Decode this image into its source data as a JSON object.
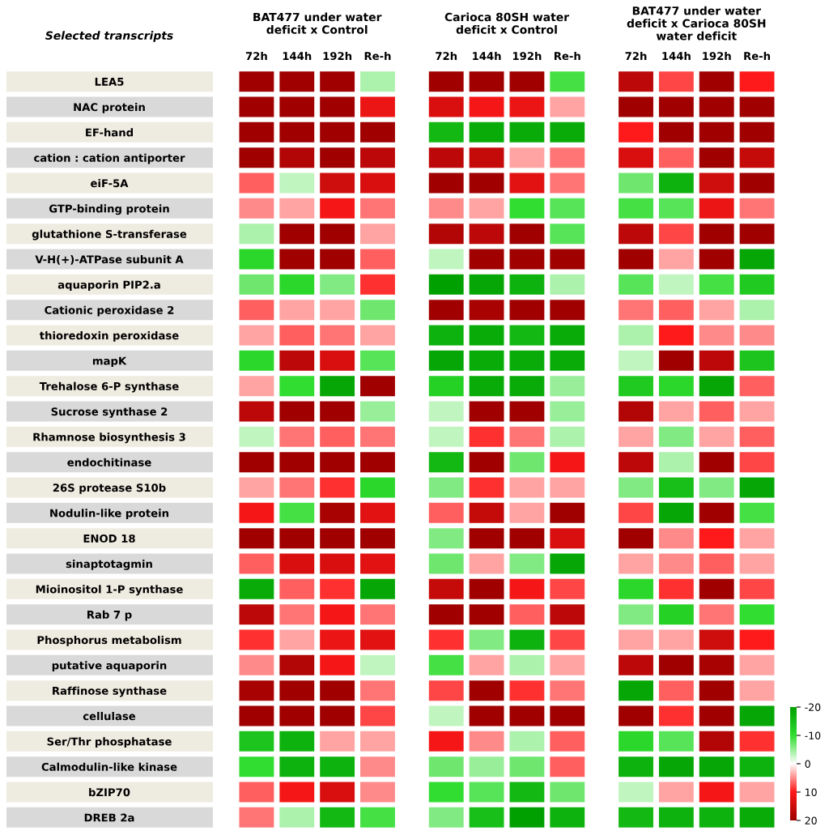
{
  "chart_data": {
    "type": "heatmap",
    "annotations": [
      "Selected transcripts",
      "BAT477 under water\ndeficit x Control",
      "Carioca 80SH water\ndeficit x Control",
      "BAT477 under water\ndeficit x Carioca 80SH\nwater deficit"
    ],
    "categories": [
      "72h",
      "144h",
      "192h",
      "Re-h",
      "72h",
      "144h",
      "192h",
      "Re-h",
      "72h",
      "144h",
      "192h",
      "Re-h"
    ],
    "y_categories": [
      "LEA5",
      "NAC protein",
      "EF-hand",
      "cation : cation antiporter",
      "eiF-5A",
      "GTP-binding protein",
      "glutathione S-transferase",
      "V-H(+)-ATPase subunit A",
      "aquaporin PIP2.a",
      "Cationic peroxidase 2",
      "thioredoxin peroxidase",
      "mapK",
      "Trehalose 6-P synthase",
      "Sucrose synthase 2",
      "Rhamnose biosynthesis 3",
      "endochitinase",
      "26S protease S10b",
      "Nodulin-like protein",
      "ENOD 18",
      "sinaptotagmin",
      "Mioinositol 1-P synthase",
      "Rab 7 p",
      "Phosphorus metabolism",
      "putative aquaporin",
      "Raffinose synthase",
      "cellulase",
      "Ser/Thr phosphatase",
      "Calmodulin-like kinase",
      "bZIP70",
      "DREB 2a"
    ],
    "cells": [
      [
        20,
        20,
        20,
        -4,
        20,
        20,
        20,
        -9,
        17,
        8,
        20,
        10
      ],
      [
        20,
        20,
        20,
        12,
        14,
        11,
        12,
        4,
        20,
        20,
        20,
        20
      ],
      [
        20,
        20,
        20,
        20,
        -16,
        -18,
        -18,
        -18,
        10,
        20,
        20,
        20
      ],
      [
        20,
        18,
        20,
        17,
        17,
        16,
        4,
        6,
        14,
        7,
        20,
        16
      ],
      [
        7,
        -3,
        15,
        14,
        20,
        20,
        13,
        6,
        -7,
        -17,
        15,
        20
      ],
      [
        5,
        4,
        11,
        6,
        5,
        4,
        -10,
        -8,
        -9,
        -8,
        12,
        6
      ],
      [
        -4,
        20,
        20,
        4,
        18,
        17,
        20,
        -8,
        17,
        8,
        20,
        20
      ],
      [
        -11,
        20,
        20,
        7,
        -3,
        20,
        20,
        20,
        20,
        4,
        20,
        -19
      ],
      [
        -7,
        -11,
        -6,
        9,
        -20,
        -19,
        -17,
        -4,
        -8,
        -3,
        -9,
        -13
      ],
      [
        7,
        4,
        4,
        -7,
        20,
        19,
        20,
        20,
        6,
        7,
        4,
        -4
      ],
      [
        4,
        7,
        6,
        4,
        -17,
        -18,
        -16,
        -18,
        -4,
        10,
        5,
        5
      ],
      [
        -11,
        17,
        14,
        -8,
        -19,
        -18,
        -18,
        -18,
        -3,
        20,
        17,
        -14
      ],
      [
        4,
        -10,
        -19,
        20,
        -12,
        -18,
        -18,
        -5,
        -13,
        -11,
        -19,
        7
      ],
      [
        17,
        20,
        20,
        -5,
        -3,
        20,
        20,
        -5,
        18,
        4,
        7,
        4
      ],
      [
        -3,
        6,
        7,
        6,
        -3,
        9,
        6,
        -4,
        4,
        -6,
        4,
        7
      ],
      [
        20,
        20,
        20,
        20,
        -16,
        20,
        -7,
        11,
        17,
        -4,
        20,
        8
      ],
      [
        4,
        6,
        9,
        -11,
        -6,
        9,
        4,
        4,
        -6,
        -15,
        -6,
        -19
      ],
      [
        11,
        -9,
        19,
        13,
        7,
        16,
        4,
        20,
        8,
        -19,
        20,
        -9
      ],
      [
        20,
        20,
        20,
        20,
        -6,
        20,
        20,
        14,
        20,
        5,
        10,
        4
      ],
      [
        7,
        14,
        14,
        13,
        -7,
        4,
        -6,
        -19,
        4,
        5,
        7,
        4
      ],
      [
        -18,
        7,
        9,
        -19,
        16,
        20,
        11,
        8,
        -11,
        9,
        20,
        8
      ],
      [
        17,
        6,
        11,
        6,
        20,
        20,
        7,
        17,
        -6,
        -12,
        6,
        -10
      ],
      [
        9,
        4,
        12,
        13,
        9,
        -6,
        -17,
        8,
        4,
        4,
        15,
        10
      ],
      [
        5,
        18,
        11,
        -3,
        -9,
        4,
        -4,
        4,
        17,
        20,
        19,
        4
      ],
      [
        19,
        20,
        20,
        6,
        8,
        20,
        9,
        6,
        -19,
        7,
        20,
        4
      ],
      [
        20,
        20,
        20,
        8,
        -3,
        20,
        20,
        20,
        20,
        9,
        20,
        -19
      ],
      [
        -14,
        -17,
        4,
        4,
        11,
        5,
        -4,
        7,
        -11,
        -8,
        18,
        9
      ],
      [
        -10,
        -17,
        -17,
        5,
        -7,
        -5,
        -7,
        7,
        -17,
        -19,
        -19,
        -17
      ],
      [
        7,
        11,
        14,
        5,
        -10,
        -8,
        -16,
        -7,
        -3,
        4,
        11,
        4
      ],
      [
        6,
        -4,
        -16,
        -9,
        -6,
        -15,
        -20,
        -17,
        -16,
        -17,
        -17,
        -18
      ]
    ],
    "clim": [
      -20,
      20
    ],
    "cticks": [
      -20,
      -10,
      0,
      10,
      20
    ]
  }
}
